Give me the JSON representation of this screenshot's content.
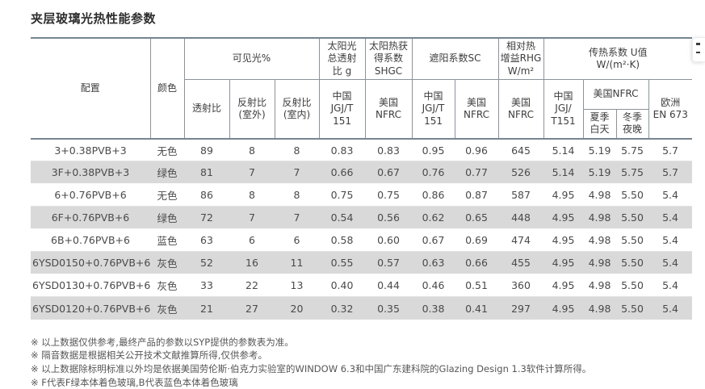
{
  "page": {
    "title": "夹层玻璃光热性能参数"
  },
  "colors": {
    "table_accent_border": "#76858f",
    "alt_row_background": "#d9d9d9"
  },
  "table": {
    "header": {
      "config": "配置",
      "color": "颜色",
      "visible_light": "可见光%",
      "transmittance": "透射比",
      "reflectance_outdoor": "反射比\n(室外)",
      "reflectance_indoor": "反射比\n(室内)",
      "solar_g": "太阳光\n总透射\n比 g",
      "shgc": "太阳热获\n得系数\nSHGC",
      "sc": "遮阳系数SC",
      "rhg": "相对热\n增益RHG\nW/m²",
      "u_value": "传热系数 U值\nW/(m²·K)",
      "china_jgjt151": "中国\nJGJ/T\n151",
      "china_jgjt151_u": "中国\nJGJ/\nT151",
      "usa_nfrc": "美国\nNFRC",
      "usa_nfrc_inline": "美国NFRC",
      "summer_day": "夏季\n白天",
      "winter_night": "冬季\n夜晚",
      "europe_en673": "欧洲\nEN 673"
    },
    "rows": [
      [
        "3+0.38PVB+3",
        "无色",
        "89",
        "8",
        "8",
        "0.83",
        "0.83",
        "0.95",
        "0.96",
        "645",
        "5.14",
        "5.19",
        "5.75",
        "5.7"
      ],
      [
        "3F+0.38PVB+3",
        "绿色",
        "81",
        "7",
        "7",
        "0.66",
        "0.67",
        "0.76",
        "0.77",
        "526",
        "5.14",
        "5.19",
        "5.75",
        "5.7"
      ],
      [
        "6+0.76PVB+6",
        "无色",
        "86",
        "8",
        "8",
        "0.75",
        "0.75",
        "0.86",
        "0.87",
        "587",
        "4.95",
        "4.98",
        "5.50",
        "5.4"
      ],
      [
        "6F+0.76PVB+6",
        "绿色",
        "72",
        "7",
        "7",
        "0.54",
        "0.56",
        "0.62",
        "0.65",
        "448",
        "4.95",
        "4.98",
        "5.50",
        "5.4"
      ],
      [
        "6B+0.76PVB+6",
        "蓝色",
        "63",
        "6",
        "6",
        "0.58",
        "0.60",
        "0.67",
        "0.69",
        "474",
        "4.95",
        "4.98",
        "5.50",
        "5.4"
      ],
      [
        "6YSD0150+0.76PVB+6",
        "灰色",
        "52",
        "16",
        "11",
        "0.55",
        "0.57",
        "0.63",
        "0.66",
        "455",
        "4.95",
        "4.98",
        "5.50",
        "5.4"
      ],
      [
        "6YSD0130+0.76PVB+6",
        "灰色",
        "33",
        "22",
        "13",
        "0.40",
        "0.44",
        "0.46",
        "0.51",
        "360",
        "4.95",
        "4.98",
        "5.50",
        "5.4"
      ],
      [
        "6YSD0120+0.76PVB+6",
        "灰色",
        "21",
        "27",
        "20",
        "0.32",
        "0.35",
        "0.38",
        "0.41",
        "297",
        "4.95",
        "4.98",
        "5.50",
        "5.4"
      ]
    ]
  },
  "footnotes": [
    "※ 以上数据仅供参考,最终产品的参数以SYP提供的参数表为准。",
    "※ 隔音数据是根据相关公开技术文献推算所得,仅供参考。",
    "※ 以上数据除标明标准以外均是依据美国劳伦斯·伯克力实验室的WINDOW 6.3和中国广东建科院的Glazing Design 1.3软件计算所得。",
    "※ F代表F绿本体着色玻璃,B代表蓝色本体着色玻璃"
  ]
}
